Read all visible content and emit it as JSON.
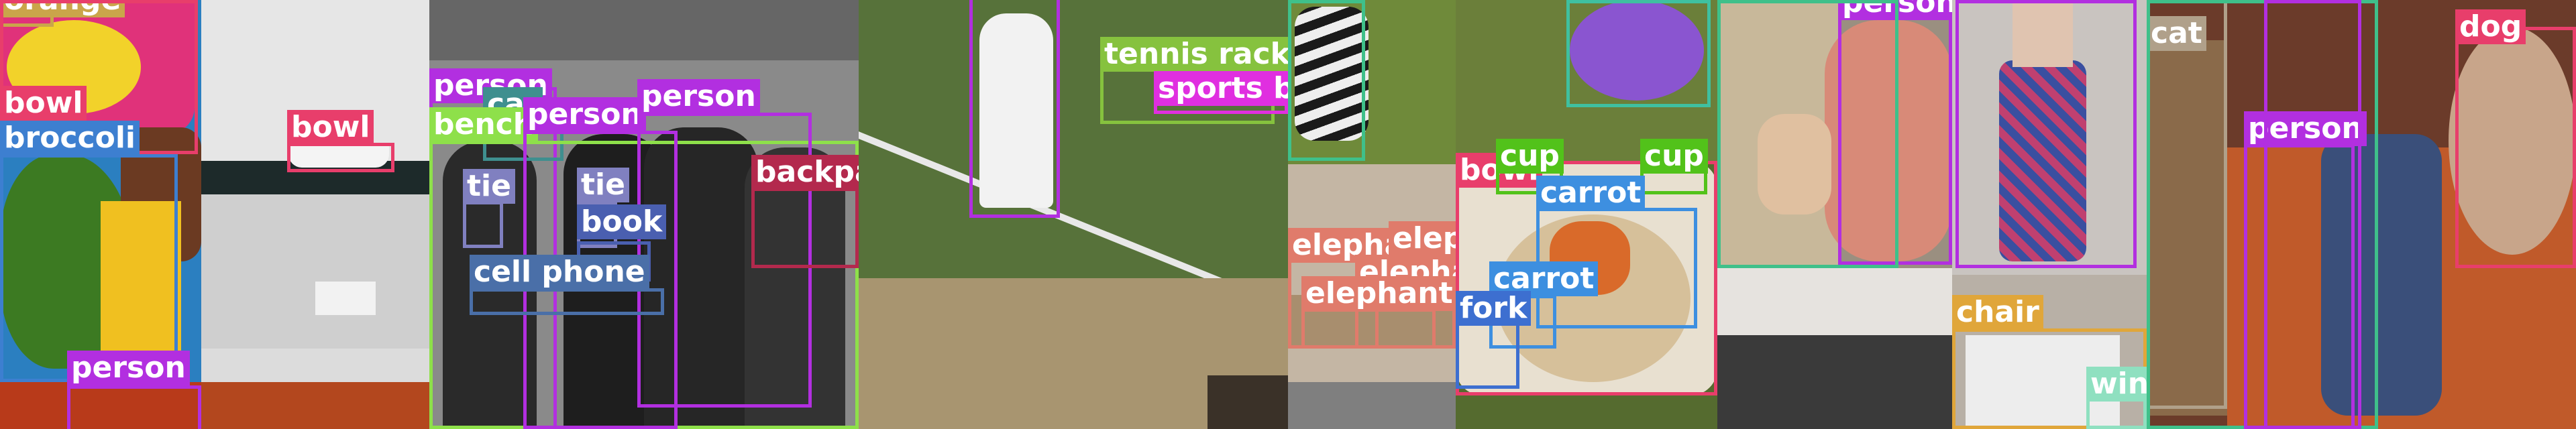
{
  "mosaic": {
    "tiles": [
      {
        "name": "tile-lunchbox",
        "background": "#2b7fc0",
        "detections": [
          {
            "label": "orange",
            "color": "#caa54a"
          },
          {
            "label": "bowl",
            "color": "#e83e6b"
          },
          {
            "label": "broccoli",
            "color": "#3d7fd0"
          },
          {
            "label": "person",
            "color": "#b22fe0"
          }
        ]
      },
      {
        "name": "tile-bathroom",
        "background": "#dcdcdc",
        "detections": [
          {
            "label": "bowl",
            "color": "#e83e6b"
          }
        ]
      },
      {
        "name": "tile-cadets",
        "background": "#7d7d7d",
        "detections": [
          {
            "label": "person",
            "color": "#b22fe0"
          },
          {
            "label": "car",
            "color": "#3f8f8f"
          },
          {
            "label": "bench",
            "color": "#8ee04a"
          },
          {
            "label": "person",
            "color": "#b22fe0"
          },
          {
            "label": "person",
            "color": "#b22fe0"
          },
          {
            "label": "backpack",
            "color": "#b3294d"
          },
          {
            "label": "tie",
            "color": "#8080c0"
          },
          {
            "label": "tie",
            "color": "#8080c0"
          },
          {
            "label": "book",
            "color": "#4a5fb0"
          },
          {
            "label": "cell phone",
            "color": "#4a6fa8"
          }
        ]
      },
      {
        "name": "tile-tennis",
        "background": "#4e6a2e",
        "detections": [
          {
            "label": "tennis racket",
            "color": "#86c23e"
          },
          {
            "label": "sports ball",
            "color": "#e02fe0"
          }
        ]
      },
      {
        "name": "tile-zebra-elephants",
        "background": "#7f7f7f",
        "detections": [
          {
            "label": "elephant",
            "color": "#e07b6b"
          },
          {
            "label": "elephant",
            "color": "#e07b6b"
          },
          {
            "label": "elephant",
            "color": "#e07b6b"
          },
          {
            "label": "elephant",
            "color": "#e07b6b"
          }
        ]
      },
      {
        "name": "tile-frisbee-food",
        "background": "#556b2f",
        "detections": [
          {
            "label": "bowl",
            "color": "#e83e6b"
          },
          {
            "label": "cup",
            "color": "#52c21a"
          },
          {
            "label": "cup",
            "color": "#52c21a"
          },
          {
            "label": "carrot",
            "color": "#3d8fe0"
          },
          {
            "label": "carrot",
            "color": "#3d8fe0"
          },
          {
            "label": "fork",
            "color": "#3d6fd0"
          }
        ]
      },
      {
        "name": "tile-person-kitchen",
        "background": "#9a8f80",
        "detections": [
          {
            "label": "person",
            "color": "#b22fe0"
          }
        ]
      },
      {
        "name": "tile-dress-chair",
        "background": "#c9c4c0",
        "detections": [
          {
            "label": "chair",
            "color": "#e0a63a"
          },
          {
            "label": "wine",
            "color": "#8fe0c0"
          }
        ]
      },
      {
        "name": "tile-cat-dog",
        "background": "#6b3b2a",
        "detections": [
          {
            "label": "cat",
            "color": "#b0a08a"
          },
          {
            "label": "person",
            "color": "#b22fe0"
          },
          {
            "label": "dog",
            "color": "#e83e6b"
          }
        ]
      }
    ]
  }
}
